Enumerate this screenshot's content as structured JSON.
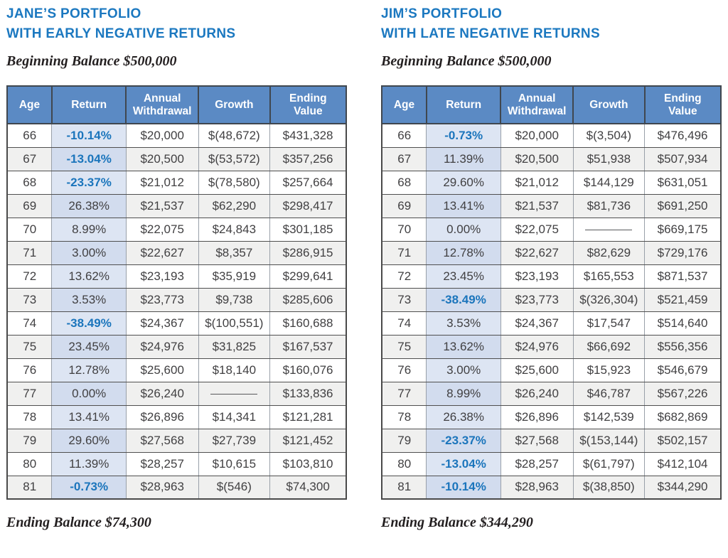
{
  "colors": {
    "title_blue": "#1b78c0",
    "header_bg": "#5b8ac4",
    "negative_return_blue": "#1b75bc",
    "return_column_bg": "#dde5f3",
    "return_column_bg_alt": "#d2dcee",
    "alt_row_bg": "#f0f0ef",
    "body_text": "#414042"
  },
  "columns": [
    "Age",
    "Return",
    "Annual Withdrawal",
    "Growth",
    "Ending Value"
  ],
  "portfolios": [
    {
      "title_lines": [
        "JANE’S PORTFOLIO",
        "WITH EARLY NEGATIVE RETURNS"
      ],
      "beginning_balance": "Beginning Balance $500,000",
      "ending_balance": "Ending Balance $74,300",
      "rows": [
        [
          "66",
          "-10.14%",
          "$20,000",
          "$(48,672)",
          "$431,328"
        ],
        [
          "67",
          "-13.04%",
          "$20,500",
          "$(53,572)",
          "$357,256"
        ],
        [
          "68",
          "-23.37%",
          "$21,012",
          "$(78,580)",
          "$257,664"
        ],
        [
          "69",
          "26.38%",
          "$21,537",
          "$62,290",
          "$298,417"
        ],
        [
          "70",
          "8.99%",
          "$22,075",
          "$24,843",
          "$301,185"
        ],
        [
          "71",
          "3.00%",
          "$22,627",
          "$8,357",
          "$286,915"
        ],
        [
          "72",
          "13.62%",
          "$23,193",
          "$35,919",
          "$299,641"
        ],
        [
          "73",
          "3.53%",
          "$23,773",
          "$9,738",
          "$285,606"
        ],
        [
          "74",
          "-38.49%",
          "$24,367",
          "$(100,551)",
          "$160,688"
        ],
        [
          "75",
          "23.45%",
          "$24,976",
          "$31,825",
          "$167,537"
        ],
        [
          "76",
          "12.78%",
          "$25,600",
          "$18,140",
          "$160,076"
        ],
        [
          "77",
          "0.00%",
          "$26,240",
          "",
          "$133,836"
        ],
        [
          "78",
          "13.41%",
          "$26,896",
          "$14,341",
          "$121,281"
        ],
        [
          "79",
          "29.60%",
          "$27,568",
          "$27,739",
          "$121,452"
        ],
        [
          "80",
          "11.39%",
          "$28,257",
          "$10,615",
          "$103,810"
        ],
        [
          "81",
          "-0.73%",
          "$28,963",
          "$(546)",
          "$74,300"
        ]
      ]
    },
    {
      "title_lines": [
        "JIM’S PORTFOLIO",
        "WITH LATE NEGATIVE RETURNS"
      ],
      "beginning_balance": "Beginning Balance $500,000",
      "ending_balance": "Ending Balance $344,290",
      "rows": [
        [
          "66",
          "-0.73%",
          "$20,000",
          "$(3,504)",
          "$476,496"
        ],
        [
          "67",
          "11.39%",
          "$20,500",
          "$51,938",
          "$507,934"
        ],
        [
          "68",
          "29.60%",
          "$21,012",
          "$144,129",
          "$631,051"
        ],
        [
          "69",
          "13.41%",
          "$21,537",
          "$81,736",
          "$691,250"
        ],
        [
          "70",
          "0.00%",
          "$22,075",
          "",
          "$669,175"
        ],
        [
          "71",
          "12.78%",
          "$22,627",
          "$82,629",
          "$729,176"
        ],
        [
          "72",
          "23.45%",
          "$23,193",
          "$165,553",
          "$871,537"
        ],
        [
          "73",
          "-38.49%",
          "$23,773",
          "$(326,304)",
          "$521,459"
        ],
        [
          "74",
          "3.53%",
          "$24,367",
          "$17,547",
          "$514,640"
        ],
        [
          "75",
          "13.62%",
          "$24,976",
          "$66,692",
          "$556,356"
        ],
        [
          "76",
          "3.00%",
          "$25,600",
          "$15,923",
          "$546,679"
        ],
        [
          "77",
          "8.99%",
          "$26,240",
          "$46,787",
          "$567,226"
        ],
        [
          "78",
          "26.38%",
          "$26,896",
          "$142,539",
          "$682,869"
        ],
        [
          "79",
          "-23.37%",
          "$27,568",
          "$(153,144)",
          "$502,157"
        ],
        [
          "80",
          "-13.04%",
          "$28,257",
          "$(61,797)",
          "$412,104"
        ],
        [
          "81",
          "-10.14%",
          "$28,963",
          "$(38,850)",
          "$344,290"
        ]
      ]
    }
  ]
}
